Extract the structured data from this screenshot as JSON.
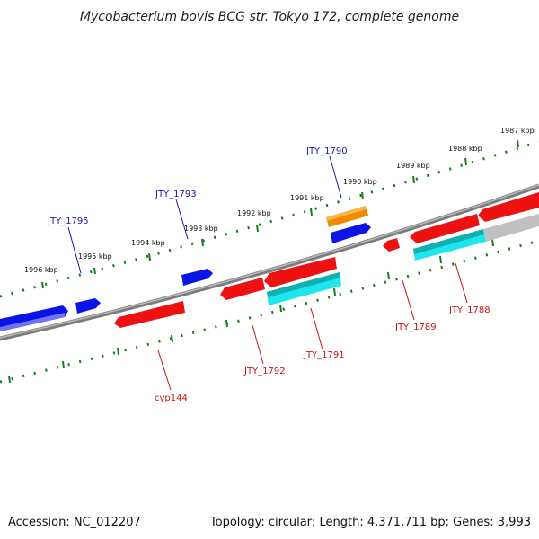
{
  "title": "Mycobacterium bovis BCG str. Tokyo 172, complete genome",
  "footer": {
    "accession": "Accession: NC_012207",
    "summary": "Topology: circular; Length: 4,371,711 bp; Genes: 3,993"
  },
  "kbp_labels": [
    "1987 kbp",
    "1988 kbp",
    "1989 kbp",
    "1990 kbp",
    "1991 kbp",
    "1992 kbp",
    "1993 kbp",
    "1994 kbp",
    "1995 kbp",
    "1996 kbp"
  ],
  "colors": {
    "forward_gene": "#0a14e6",
    "reverse_gene": "#ee1111",
    "rna_feature": "#1ee6ee",
    "pseudo_feature": "#f08800",
    "other_feature": "#c0c0c0",
    "backbone": "#808080",
    "tick": "#1a7a1a",
    "forward_label": "#1a1aaa",
    "reverse_label": "#cc1111"
  },
  "gene_labels": [
    {
      "name": "JTY_1790",
      "strand": "forward"
    },
    {
      "name": "JTY_1793",
      "strand": "forward"
    },
    {
      "name": "JTY_1795",
      "strand": "forward"
    },
    {
      "name": "JTY_1789",
      "strand": "reverse"
    },
    {
      "name": "JTY_1788",
      "strand": "reverse"
    },
    {
      "name": "JTY_1791",
      "strand": "reverse"
    },
    {
      "name": "JTY_1792",
      "strand": "reverse"
    },
    {
      "name": "cyp144",
      "strand": "reverse"
    }
  ]
}
